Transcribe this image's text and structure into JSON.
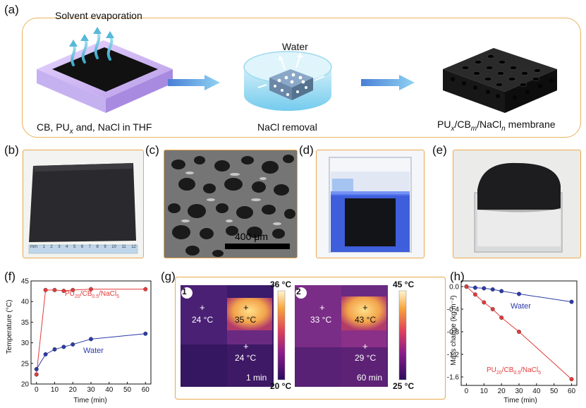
{
  "panels": {
    "a": "(a)",
    "b": "(b)",
    "c": "(c)",
    "d": "(d)",
    "e": "(e)",
    "f": "(f)",
    "g": "(g)",
    "h": "(h)"
  },
  "schematic": {
    "solvent_evaporation": "Solvent evaporation",
    "water": "Water",
    "caption_left": "CB, PU",
    "caption_left_sub": "x",
    "caption_left_end": " and,  NaCl in THF",
    "caption_mid": "NaCl removal",
    "caption_right_a": "PU",
    "caption_right_sub1": "x",
    "caption_right_b": "/CB",
    "caption_right_sub2": "m",
    "caption_right_c": "/NaCl",
    "caption_right_sub3": "n",
    "caption_right_d": " membrane"
  },
  "sem": {
    "scale_bar": "400 μm"
  },
  "ruler": {
    "unit": "mm",
    "ticks": [
      "1",
      "2",
      "3",
      "4",
      "5",
      "6",
      "7",
      "8",
      "9",
      "10",
      "11",
      "12"
    ]
  },
  "thermal": {
    "panel1": {
      "index": "1",
      "max": "36 °C",
      "min": "20 °C",
      "time": "1 min",
      "readings": [
        "24 °C",
        "35 °C",
        "24 °C"
      ]
    },
    "panel2": {
      "index": "2",
      "max": "45 °C",
      "min": "25 °C",
      "time": "60 min",
      "readings": [
        "33 °C",
        "43 °C",
        "29 °C"
      ]
    },
    "plus": "+"
  },
  "colors": {
    "red_series": "#e23b3b",
    "blue_series": "#2b3aa8",
    "frame": "#e8a94a"
  },
  "chart_data": [
    {
      "id": "f",
      "type": "line",
      "xlabel": "Time (min)",
      "ylabel": "Temperature (°C)",
      "xlim": [
        -3,
        63
      ],
      "ylim": [
        20,
        45
      ],
      "xticks": [
        0,
        10,
        20,
        30,
        40,
        50,
        60
      ],
      "yticks": [
        20,
        25,
        30,
        35,
        40,
        45
      ],
      "series": [
        {
          "name": "PU20/CB0.5/NaCl5",
          "label_main": "PU",
          "label_sub1": "20",
          "label_mid1": "/CB",
          "label_sub2": "0.5",
          "label_mid2": "/NaCl",
          "label_sub3": "5",
          "color": "#e23b3b",
          "x": [
            0,
            5,
            10,
            15,
            20,
            30,
            60
          ],
          "y": [
            22.3,
            42.8,
            42.8,
            42.6,
            42.8,
            43.0,
            43.0
          ]
        },
        {
          "name": "Water",
          "label_main": "Water",
          "color": "#2b3aa8",
          "x": [
            0,
            5,
            10,
            15,
            20,
            30,
            60
          ],
          "y": [
            23.6,
            27.2,
            28.4,
            29.0,
            29.6,
            30.9,
            32.2
          ]
        }
      ]
    },
    {
      "id": "h",
      "type": "line",
      "xlabel": "Time (min)",
      "ylabel": "Mass change (kg m⁻²)",
      "xlim": [
        -3,
        63
      ],
      "ylim": [
        -1.75,
        0.1
      ],
      "xticks": [
        0,
        10,
        20,
        30,
        40,
        50,
        60
      ],
      "yticks": [
        0.0,
        -0.4,
        -0.8,
        -1.2,
        -1.6
      ],
      "ytick_labels": [
        "0.0",
        "-0.4",
        "-0.8",
        "-1.2",
        "-1.6"
      ],
      "series": [
        {
          "name": "Water",
          "label_main": "Water",
          "color": "#2b3aa8",
          "x": [
            0,
            5,
            10,
            15,
            20,
            30,
            60
          ],
          "y": [
            0.0,
            -0.02,
            -0.03,
            -0.05,
            -0.08,
            -0.13,
            -0.27
          ]
        },
        {
          "name": "PU20/CB0.5/NaCl5",
          "label_main": "PU",
          "label_sub1": "20",
          "label_mid1": "/CB",
          "label_sub2": "0.5",
          "label_mid2": "/NaCl",
          "label_sub3": "5",
          "color": "#e23b3b",
          "x": [
            0,
            5,
            10,
            15,
            20,
            30,
            60
          ],
          "y": [
            0.0,
            -0.14,
            -0.28,
            -0.4,
            -0.55,
            -0.8,
            -1.64
          ]
        }
      ]
    }
  ]
}
